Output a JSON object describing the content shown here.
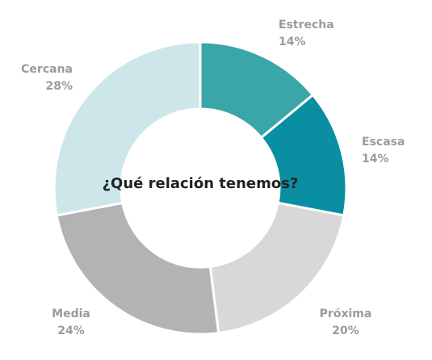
{
  "chart_data": {
    "type": "pie",
    "title": "¿Qué relación tenemos?",
    "slices": [
      {
        "label": "Estrecha",
        "value": 14,
        "value_label": "14%",
        "color": "#3aa6a8"
      },
      {
        "label": "Escasa",
        "value": 14,
        "value_label": "14%",
        "color": "#0a8ea2"
      },
      {
        "label": "Próxima",
        "value": 20,
        "value_label": "20%",
        "color": "#d8d8d8"
      },
      {
        "label": "Media",
        "value": 24,
        "value_label": "24%",
        "color": "#b3b3b3"
      },
      {
        "label": "Cercana",
        "value": 28,
        "value_label": "28%",
        "color": "#cde6ea"
      }
    ]
  }
}
